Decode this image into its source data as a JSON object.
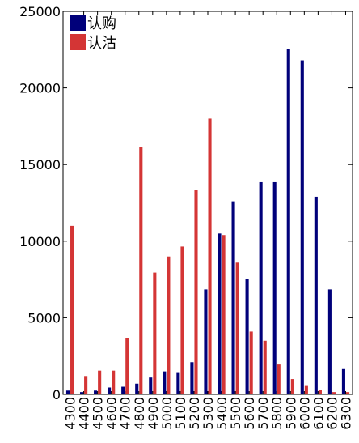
{
  "chart_data": {
    "type": "bar",
    "title": "",
    "xlabel": "",
    "ylabel": "",
    "categories": [
      "4300",
      "4400",
      "4500",
      "4600",
      "4700",
      "4800",
      "4900",
      "5000",
      "5100",
      "5200",
      "5300",
      "5400",
      "5500",
      "5600",
      "5700",
      "5800",
      "5900",
      "6000",
      "6100",
      "6200",
      "6300"
    ],
    "ylim": [
      0,
      25000
    ],
    "yticks": [
      0,
      5000,
      10000,
      15000,
      20000,
      25000
    ],
    "legend_position": "top-left",
    "series": [
      {
        "name": "认购",
        "color": "#00007a",
        "values": [
          250,
          150,
          250,
          450,
          500,
          700,
          1100,
          1500,
          1450,
          2100,
          6850,
          10500,
          12600,
          7550,
          13850,
          13850,
          22550,
          21800,
          12900,
          6850,
          1650
        ]
      },
      {
        "name": "认沽",
        "color": "#d43535",
        "values": [
          11000,
          1200,
          1550,
          1550,
          3700,
          16150,
          7950,
          9000,
          9650,
          13350,
          18000,
          10400,
          8600,
          4100,
          3500,
          1950,
          1000,
          550,
          300,
          150,
          150
        ]
      }
    ]
  }
}
